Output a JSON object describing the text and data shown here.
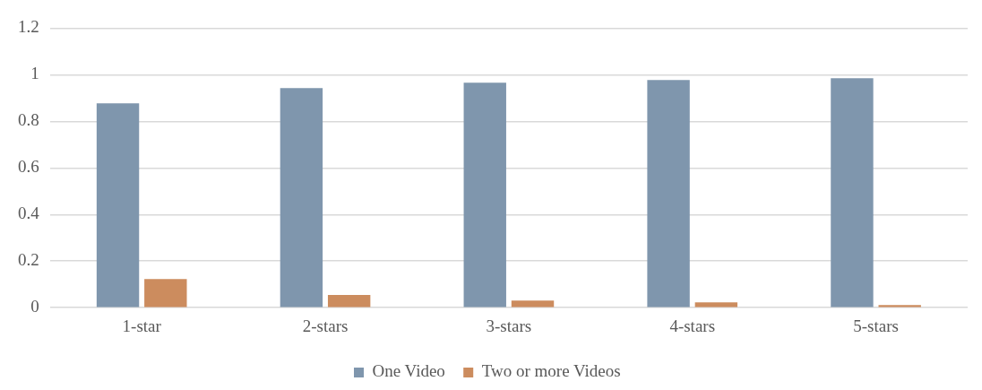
{
  "chart_data": {
    "type": "bar",
    "categories": [
      "1-star",
      "2-stars",
      "3-stars",
      "4-stars",
      "5-stars"
    ],
    "series": [
      {
        "name": "One Video",
        "color": "#7f96ad",
        "values": [
          0.877,
          0.943,
          0.966,
          0.977,
          0.985
        ]
      },
      {
        "name": "Two or more Videos",
        "color": "#cc8c5e",
        "values": [
          0.123,
          0.055,
          0.031,
          0.023,
          0.011
        ]
      }
    ],
    "ylim": [
      0,
      1.2
    ],
    "yticks": [
      0,
      0.2,
      0.4,
      0.6,
      0.8,
      1,
      1.2
    ],
    "grid": "y",
    "legend": "bottom"
  }
}
